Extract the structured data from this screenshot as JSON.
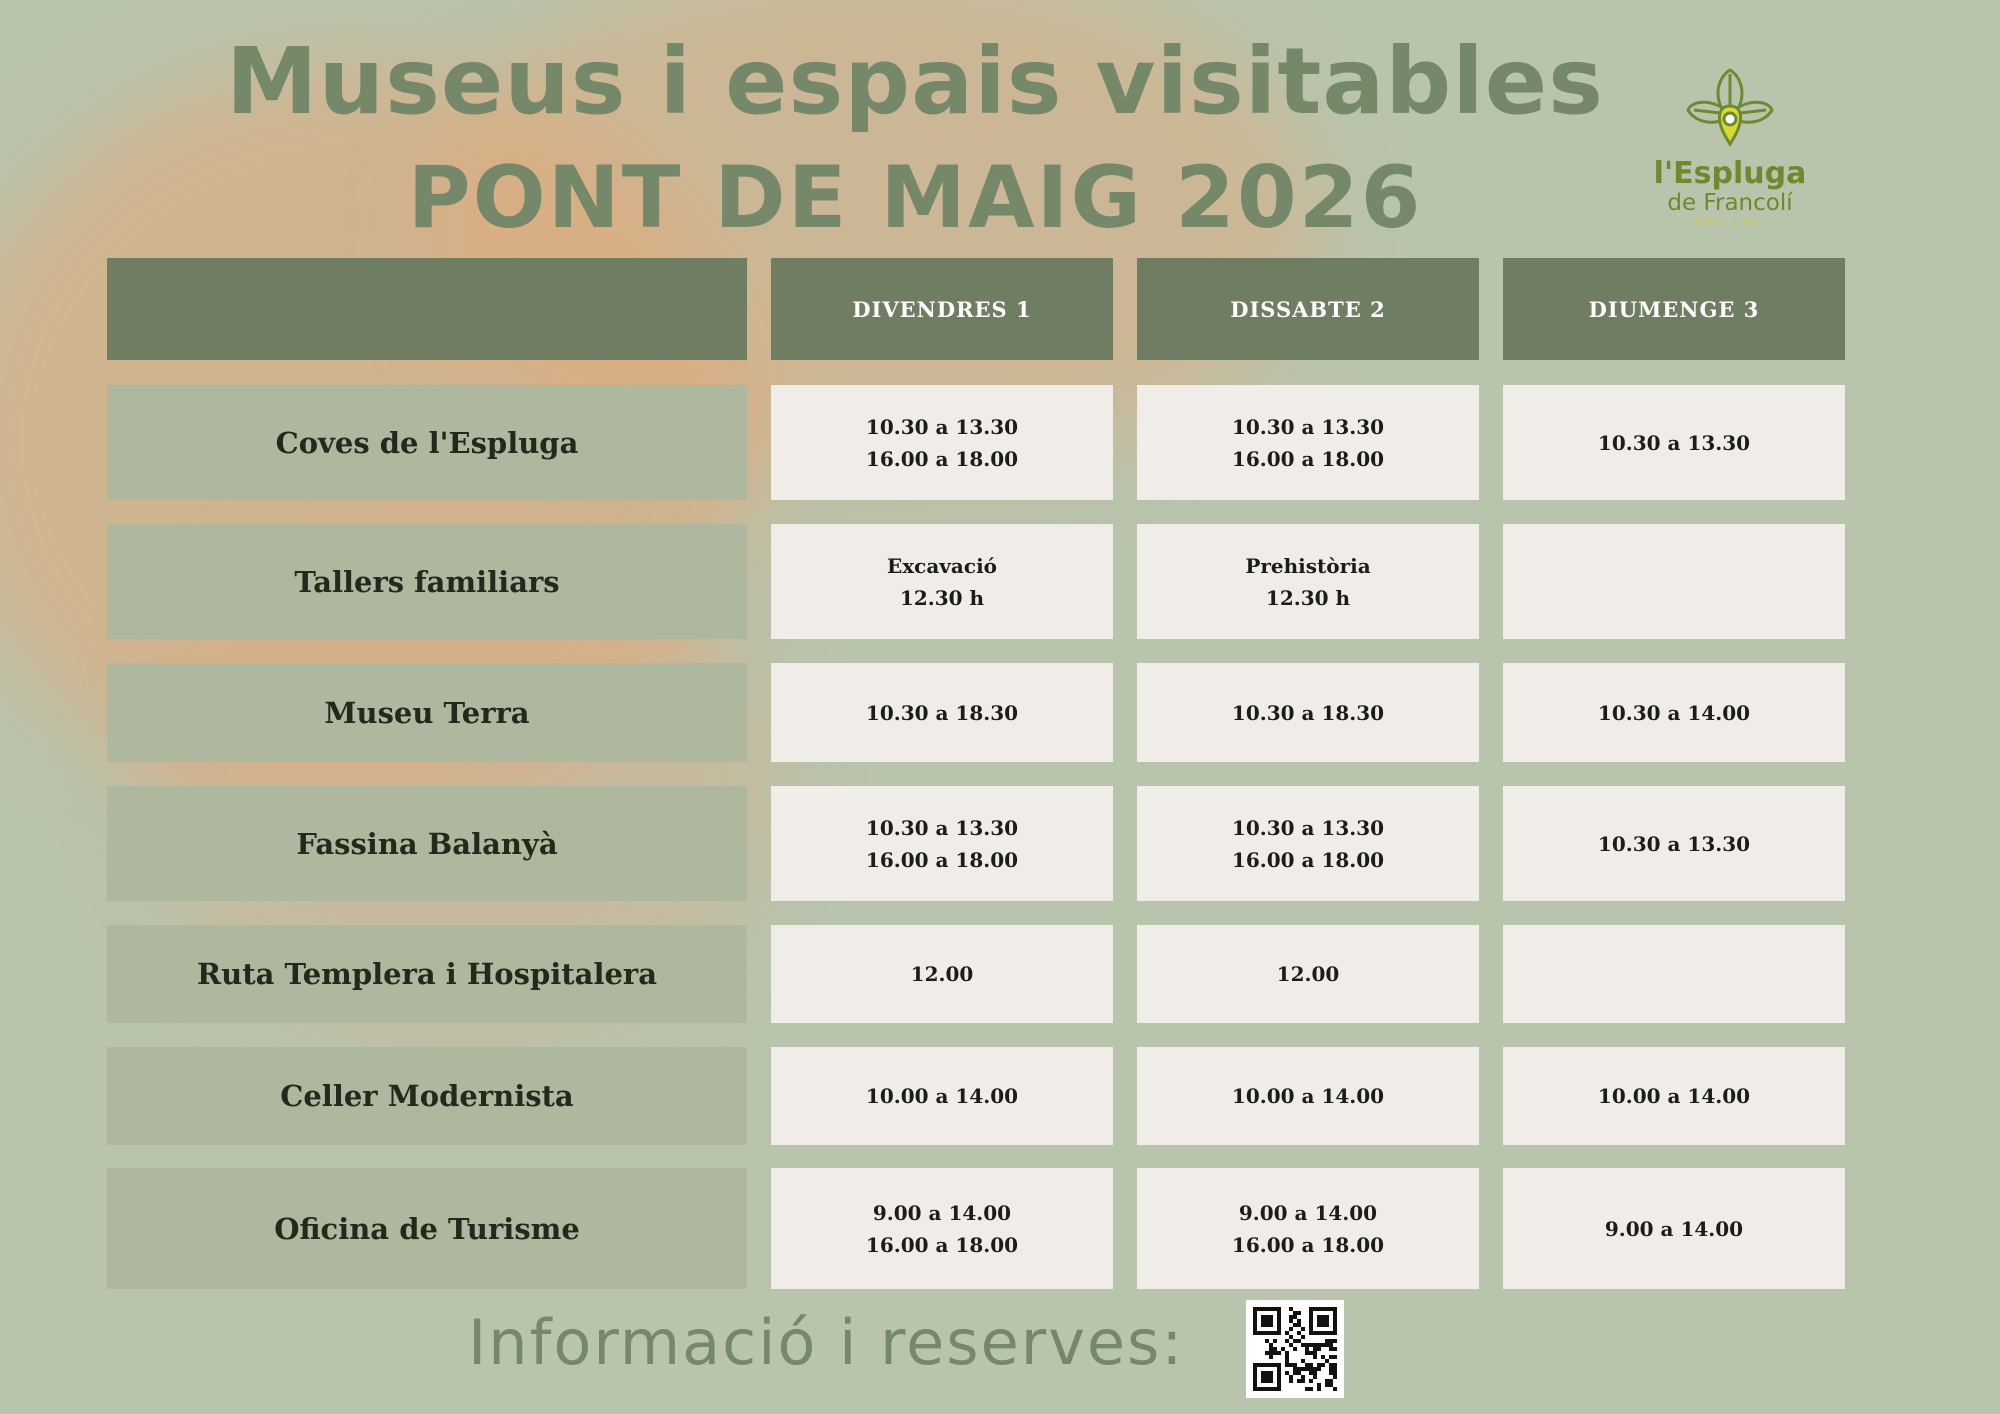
{
  "title_line1": "Museus i espais visitables",
  "title_line2": "PONT DE MAIG  2026",
  "logo": {
    "line1": "l'Espluga",
    "line2": "de Francolí",
    "line3": "TURISME",
    "icon": "location-pin-leaf-icon",
    "color": "#6d8a2e",
    "accent": "#c8cc3a"
  },
  "columns": [
    "DIVENDRES  1",
    "DISSABTE  2",
    "DIUMENGE  3"
  ],
  "rows": [
    {
      "label": "Coves de l'Espluga",
      "cells": [
        [
          "10.30 a 13.30",
          "16.00 a 18.00"
        ],
        [
          "10.30 a 13.30",
          "16.00 a 18.00"
        ],
        [
          "10.30 a 13.30"
        ]
      ]
    },
    {
      "label": "Tallers familiars",
      "cells": [
        [
          "Excavació",
          "12.30 h"
        ],
        [
          "Prehistòria",
          "12.30 h"
        ],
        []
      ]
    },
    {
      "label": "Museu Terra",
      "cells": [
        [
          "10.30 a 18.30"
        ],
        [
          "10.30 a 18.30"
        ],
        [
          "10.30 a 14.00"
        ]
      ]
    },
    {
      "label": "Fassina Balanyà",
      "cells": [
        [
          "10.30 a 13.30",
          "16.00 a 18.00"
        ],
        [
          "10.30 a 13.30",
          "16.00 a 18.00"
        ],
        [
          "10.30 a 13.30"
        ]
      ]
    },
    {
      "label": "Ruta Templera i Hospitalera",
      "cells": [
        [
          "12.00"
        ],
        [
          "12.00"
        ],
        []
      ]
    },
    {
      "label": "Celler Modernista",
      "cells": [
        [
          "10.00 a 14.00"
        ],
        [
          "10.00 a 14.00"
        ],
        [
          "10.00 a 14.00"
        ]
      ]
    },
    {
      "label": "Oficina de Turisme",
      "cells": [
        [
          "9.00 a 14.00",
          "16.00 a 18.00"
        ],
        [
          "9.00 a 14.00",
          "16.00 a 18.00"
        ],
        [
          "9.00 a 14.00"
        ]
      ]
    }
  ],
  "footer": "Informació i reserves:",
  "qr_icon": "qr-code-icon",
  "colors": {
    "background": "#b9c4ad",
    "header": "#6f7e62",
    "label_cell": "#adb89e",
    "value_cell": "#f0ece7",
    "title": "#76886a"
  }
}
